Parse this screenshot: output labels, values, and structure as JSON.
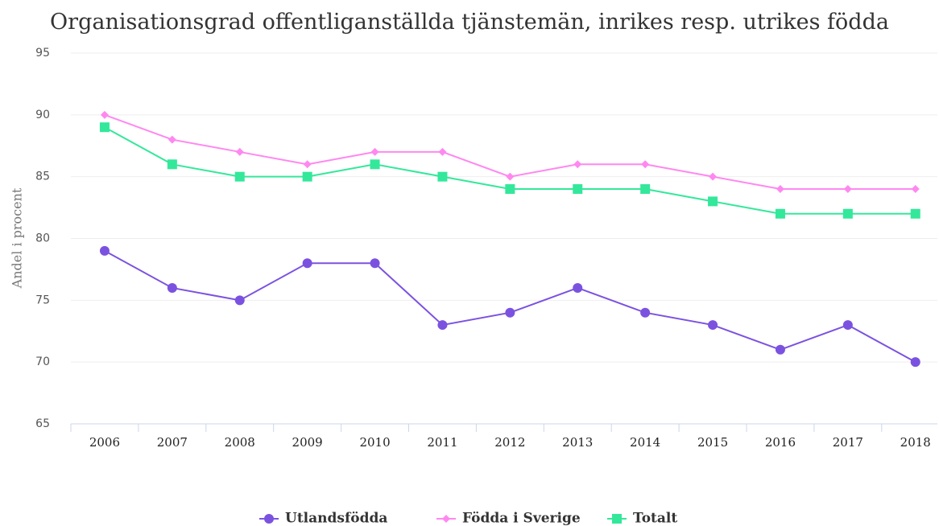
{
  "chart_data": {
    "type": "line",
    "title": "Organisationsgrad offentliganställda tjänstemän, inrikes resp. utrikes födda",
    "y_label": "Andel i procent",
    "categories": [
      "2006",
      "2007",
      "2008",
      "2009",
      "2010",
      "2011",
      "2012",
      "2013",
      "2014",
      "2015",
      "2016",
      "2017",
      "2018"
    ],
    "series": [
      {
        "name": "Utlandsfödda",
        "color": "#7b52e0",
        "marker": "circle",
        "values": [
          79,
          76,
          75,
          78,
          78,
          73,
          74,
          76,
          74,
          73,
          71,
          73,
          70
        ]
      },
      {
        "name": "Födda i Sverige",
        "color": "#ff88f0",
        "marker": "diamond",
        "values": [
          90,
          88,
          87,
          86,
          87,
          87,
          85,
          86,
          86,
          85,
          84,
          84,
          84
        ]
      },
      {
        "name": "Totalt",
        "color": "#33e89a",
        "marker": "square",
        "values": [
          89,
          86,
          85,
          85,
          86,
          85,
          84,
          84,
          84,
          83,
          82,
          82,
          82
        ]
      }
    ],
    "ylim": [
      65,
      95
    ],
    "yticks": [
      65,
      70,
      75,
      80,
      85,
      90,
      95
    ],
    "grid": true,
    "legend": "bottom"
  }
}
